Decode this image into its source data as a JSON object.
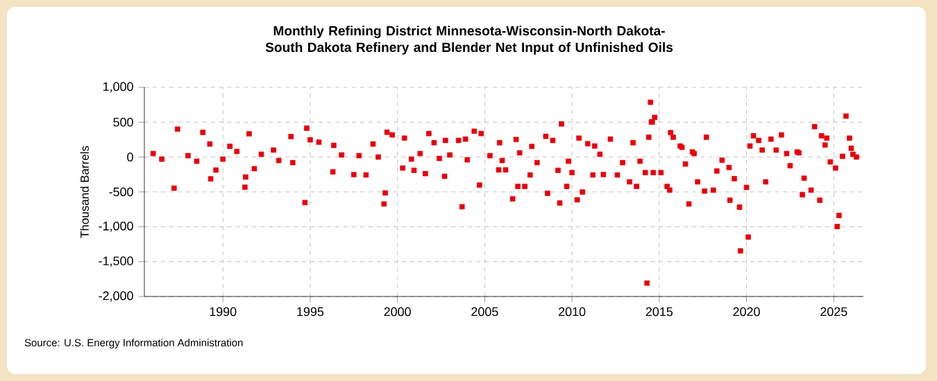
{
  "chart_data": {
    "type": "scatter",
    "title": "Monthly Refining District Minnesota-Wisconsin-North Dakota-South Dakota Refinery and Blender Net Input of Unfinished Oils",
    "ylabel": "Thousand Barrels",
    "annotations": [
      "Source: U.S. Energy Information Administration"
    ],
    "xlim": [
      1985.5,
      2026.7
    ],
    "ylim": [
      -2000,
      1000
    ],
    "xticks": [
      1990,
      1995,
      2000,
      2005,
      2010,
      2015,
      2020,
      2025
    ],
    "yticks": [
      {
        "value": -2000,
        "label": "-2,000"
      },
      {
        "value": -1500,
        "label": "-1,500"
      },
      {
        "value": -1000,
        "label": "-1,000"
      },
      {
        "value": -500,
        "label": "-500"
      },
      {
        "value": 0,
        "label": "0"
      },
      {
        "value": 500,
        "label": "500"
      },
      {
        "value": 1000,
        "label": "1,000"
      }
    ],
    "grid": true,
    "marker": "square",
    "series": [
      {
        "color": "#e8000b",
        "x": [
          1986.0,
          1986.5,
          1987.2,
          1987.4,
          1988.0,
          1988.5,
          1988.85,
          1989.25,
          1989.3,
          1989.6,
          1990.0,
          1990.4,
          1990.8,
          1991.26,
          1991.3,
          1991.5,
          1991.8,
          1992.2,
          1992.9,
          1993.2,
          1993.9,
          1994.0,
          1994.7,
          1994.8,
          1995.0,
          1995.5,
          1996.3,
          1996.35,
          1996.8,
          1997.5,
          1997.8,
          1998.2,
          1998.6,
          1998.9,
          1999.23,
          1999.3,
          1999.4,
          1999.7,
          2000.3,
          2000.4,
          2000.8,
          2000.95,
          2001.3,
          2001.6,
          2001.8,
          2002.1,
          2002.4,
          2002.7,
          2002.75,
          2003.0,
          2003.5,
          2003.7,
          2003.9,
          2004.0,
          2004.4,
          2004.7,
          2004.8,
          2005.3,
          2005.8,
          2005.85,
          2006.0,
          2006.2,
          2006.6,
          2006.8,
          2006.9,
          2007.0,
          2007.3,
          2007.6,
          2007.7,
          2008.0,
          2008.5,
          2008.6,
          2008.9,
          2009.2,
          2009.3,
          2009.4,
          2009.7,
          2009.8,
          2010.0,
          2010.3,
          2010.4,
          2010.6,
          2010.9,
          2011.2,
          2011.3,
          2011.6,
          2011.8,
          2012.2,
          2012.6,
          2012.9,
          2013.3,
          2013.5,
          2013.7,
          2013.9,
          2014.2,
          2014.3,
          2014.4,
          2014.5,
          2014.55,
          2014.6,
          2014.66,
          2014.74,
          2015.1,
          2015.45,
          2015.6,
          2015.65,
          2015.8,
          2016.2,
          2016.3,
          2016.5,
          2016.7,
          2016.9,
          2017.0,
          2017.2,
          2017.6,
          2017.7,
          2018.1,
          2018.3,
          2018.6,
          2019.0,
          2019.05,
          2019.3,
          2019.6,
          2019.65,
          2020.0,
          2020.1,
          2020.2,
          2020.4,
          2020.7,
          2020.9,
          2021.1,
          2021.4,
          2021.7,
          2022.0,
          2022.3,
          2022.5,
          2022.9,
          2023.0,
          2023.2,
          2023.3,
          2023.7,
          2023.9,
          2024.2,
          2024.3,
          2024.5,
          2024.6,
          2024.8,
          2025.1,
          2025.2,
          2025.3,
          2025.5,
          2025.7,
          2025.9,
          2026.0,
          2026.1,
          2026.3
        ],
        "values": [
          50,
          -30,
          -447,
          400,
          20,
          -60,
          353,
          187,
          -313,
          -187,
          -30,
          153,
          80,
          -433,
          -287,
          333,
          -167,
          40,
          100,
          -50,
          293,
          -80,
          -653,
          413,
          247,
          213,
          -213,
          167,
          30,
          -253,
          20,
          -257,
          187,
          0,
          -673,
          -515,
          356,
          317,
          -158,
          271,
          -30,
          -191,
          50,
          -238,
          337,
          205,
          -20,
          -277,
          238,
          30,
          238,
          -713,
          257,
          -40,
          370,
          -403,
          337,
          20,
          -185,
          205,
          -50,
          -185,
          -600,
          251,
          -422,
          60,
          -422,
          -257,
          152,
          -80,
          297,
          -521,
          238,
          -191,
          -660,
          475,
          -422,
          -60,
          -224,
          -614,
          271,
          -502,
          191,
          -257,
          158,
          40,
          -251,
          257,
          -257,
          -80,
          -356,
          205,
          -422,
          -60,
          -224,
          -1808,
          284,
          785,
          502,
          502,
          -224,
          568,
          -224,
          -422,
          -475,
          350,
          284,
          158,
          139,
          -100,
          -673,
          73,
          50,
          -356,
          -488,
          284,
          -475,
          -200,
          -46,
          -150,
          -620,
          -310,
          -719,
          -1346,
          -436,
          -1148,
          158,
          304,
          238,
          100,
          -356,
          257,
          100,
          317,
          50,
          -125,
          73,
          60,
          -541,
          -304,
          -475,
          436,
          -620,
          304,
          172,
          271,
          -70,
          -158,
          -997,
          -838,
          10,
          587,
          271,
          125,
          40,
          0
        ]
      }
    ]
  }
}
